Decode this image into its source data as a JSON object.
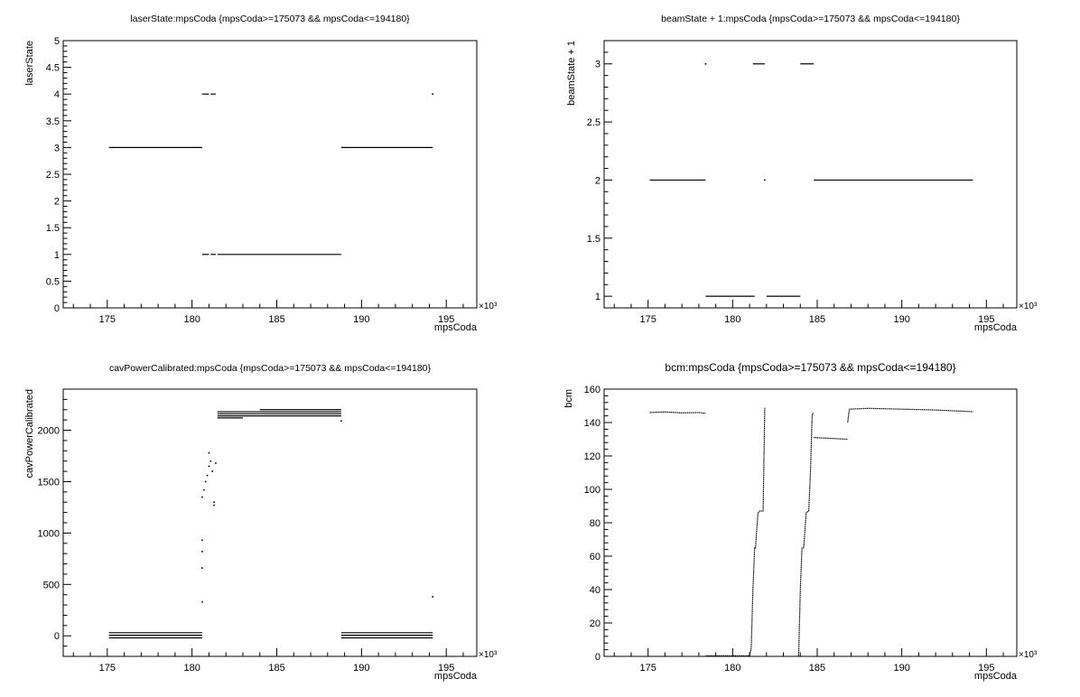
{
  "chart_data": [
    {
      "type": "scatter",
      "title": "laserState:mpsCoda {mpsCoda>=175073 && mpsCoda<=194180}",
      "xlabel": "mpsCoda",
      "ylabel": "laserState",
      "x_multiplier": "×10³",
      "xlim": [
        172.4,
        196.8
      ],
      "ylim": [
        0,
        5
      ],
      "xticks": [
        "175",
        "180",
        "185",
        "190",
        "195"
      ],
      "yticks": [
        "0",
        "0.5",
        "1",
        "1.5",
        "2",
        "2.5",
        "3",
        "3.5",
        "4",
        "4.5",
        "5"
      ],
      "grid": false,
      "segments": [
        {
          "x0": 175.1,
          "x1": 180.6,
          "y": 3
        },
        {
          "x0": 180.6,
          "x1": 181.0,
          "y": 4
        },
        {
          "x0": 181.1,
          "x1": 181.4,
          "y": 4
        },
        {
          "x0": 180.6,
          "x1": 181.0,
          "y": 1
        },
        {
          "x0": 181.1,
          "x1": 181.4,
          "y": 1
        },
        {
          "x0": 181.5,
          "x1": 188.8,
          "y": 1
        },
        {
          "x0": 188.8,
          "x1": 194.2,
          "y": 3
        }
      ],
      "points": [
        {
          "x": 194.2,
          "y": 4
        }
      ]
    },
    {
      "type": "scatter",
      "title": "beamState + 1:mpsCoda {mpsCoda>=175073 && mpsCoda<=194180}",
      "xlabel": "mpsCoda",
      "ylabel": "beamState + 1",
      "x_multiplier": "×10³",
      "xlim": [
        172.4,
        196.8
      ],
      "ylim": [
        0.9,
        3.2
      ],
      "xticks": [
        "175",
        "180",
        "185",
        "190",
        "195"
      ],
      "yticks": [
        "1",
        "1.5",
        "2",
        "2.5",
        "3"
      ],
      "grid": false,
      "segments": [
        {
          "x0": 175.1,
          "x1": 178.4,
          "y": 2
        },
        {
          "x0": 178.4,
          "x1": 181.3,
          "y": 1
        },
        {
          "x0": 181.2,
          "x1": 181.9,
          "y": 3
        },
        {
          "x0": 182.0,
          "x1": 184.0,
          "y": 1
        },
        {
          "x0": 184.0,
          "x1": 184.8,
          "y": 3
        },
        {
          "x0": 184.8,
          "x1": 194.2,
          "y": 2
        }
      ],
      "points": [
        {
          "x": 178.4,
          "y": 3
        },
        {
          "x": 181.9,
          "y": 2
        }
      ]
    },
    {
      "type": "scatter",
      "title": "cavPowerCalibrated:mpsCoda {mpsCoda>=175073 && mpsCoda<=194180}",
      "xlabel": "mpsCoda",
      "ylabel": "cavPowerCalibrated",
      "x_multiplier": "×10³",
      "xlim": [
        172.4,
        196.8
      ],
      "ylim": [
        -200,
        2400
      ],
      "xticks": [
        "175",
        "180",
        "185",
        "190",
        "195"
      ],
      "yticks": [
        "0",
        "500",
        "1000",
        "1500",
        "2000"
      ],
      "grid": false,
      "segments": [
        {
          "x0": 175.1,
          "x1": 180.6,
          "y": 30
        },
        {
          "x0": 175.1,
          "x1": 180.6,
          "y": 5
        },
        {
          "x0": 175.1,
          "x1": 180.6,
          "y": -20
        },
        {
          "x0": 181.5,
          "x1": 188.8,
          "y": 2180
        },
        {
          "x0": 181.5,
          "x1": 188.8,
          "y": 2160
        },
        {
          "x0": 181.5,
          "x1": 188.8,
          "y": 2140
        },
        {
          "x0": 181.5,
          "x1": 183.0,
          "y": 2120
        },
        {
          "x0": 184.0,
          "x1": 188.8,
          "y": 2200
        },
        {
          "x0": 188.8,
          "x1": 194.2,
          "y": 30
        },
        {
          "x0": 188.8,
          "x1": 194.2,
          "y": 5
        },
        {
          "x0": 188.8,
          "x1": 194.2,
          "y": -20
        }
      ],
      "points": [
        {
          "x": 180.6,
          "y": 330
        },
        {
          "x": 180.6,
          "y": 660
        },
        {
          "x": 180.6,
          "y": 820
        },
        {
          "x": 180.6,
          "y": 930
        },
        {
          "x": 180.6,
          "y": 1350
        },
        {
          "x": 180.7,
          "y": 1420
        },
        {
          "x": 180.8,
          "y": 1500
        },
        {
          "x": 180.9,
          "y": 1560
        },
        {
          "x": 181.0,
          "y": 1650
        },
        {
          "x": 181.0,
          "y": 1780
        },
        {
          "x": 181.1,
          "y": 1700
        },
        {
          "x": 181.2,
          "y": 1600
        },
        {
          "x": 181.3,
          "y": 1300
        },
        {
          "x": 181.3,
          "y": 1270
        },
        {
          "x": 181.4,
          "y": 1680
        },
        {
          "x": 188.8,
          "y": 2090
        },
        {
          "x": 194.2,
          "y": 380
        }
      ]
    },
    {
      "type": "scatter",
      "title": "bcm:mpsCoda {mpsCoda>=175073 && mpsCoda<=194180}",
      "xlabel": "mpsCoda",
      "ylabel": "bcm",
      "x_multiplier": "×10³",
      "xlim": [
        172.4,
        196.8
      ],
      "ylim": [
        0,
        160
      ],
      "xticks": [
        "175",
        "180",
        "185",
        "190",
        "195"
      ],
      "yticks": [
        "0",
        "20",
        "40",
        "60",
        "80",
        "100",
        "120",
        "140",
        "160"
      ],
      "grid": false,
      "series": [
        {
          "x": [
            175.1,
            176.0,
            177.0,
            178.0,
            178.4
          ],
          "y": [
            146,
            146.3,
            145.8,
            146,
            145.5
          ]
        },
        {
          "x": [
            178.4,
            181.0,
            181.1,
            181.2,
            181.3,
            181.35,
            181.5,
            181.6,
            181.8,
            181.9
          ],
          "y": [
            0.3,
            0.3,
            5,
            40,
            65,
            65,
            86,
            87,
            87,
            149
          ]
        },
        {
          "x": [
            183.9,
            184.0,
            184.1,
            184.2,
            184.35,
            184.5,
            184.6,
            184.7,
            184.8
          ],
          "y": [
            0.3,
            40,
            65,
            65,
            86,
            87,
            110,
            145,
            146
          ]
        },
        {
          "x": [
            184.8,
            186.8
          ],
          "y": [
            131,
            130
          ]
        },
        {
          "x": [
            186.8,
            186.9,
            188.0,
            190.0,
            192.0,
            194.2
          ],
          "y": [
            140,
            148,
            148.5,
            148,
            147.5,
            146.5
          ]
        }
      ]
    }
  ]
}
